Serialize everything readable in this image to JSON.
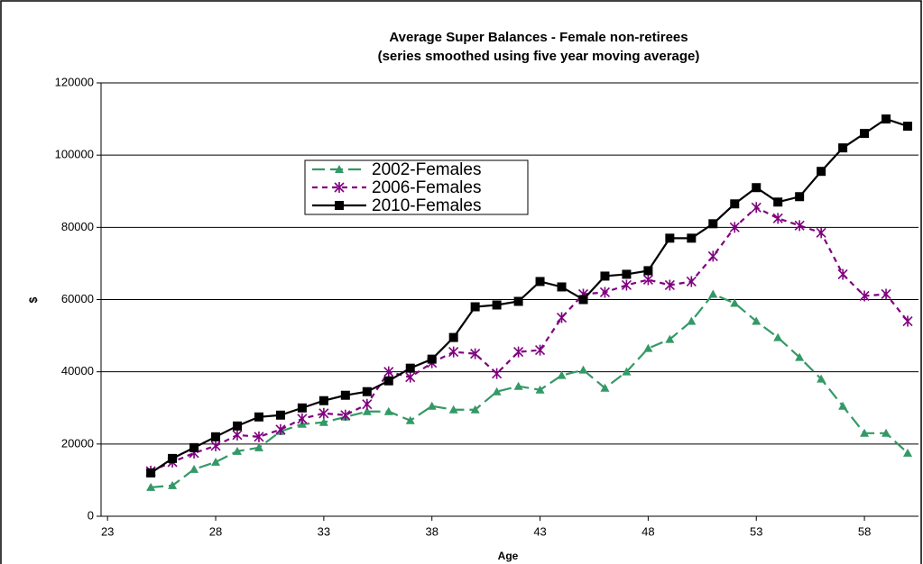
{
  "chart_data": {
    "type": "line",
    "title": "Average Super Balances - Female non-retirees",
    "subtitle": "(series smoothed using five year moving average)",
    "x_label": "Age",
    "y_label": "$",
    "x": [
      25,
      26,
      27,
      28,
      29,
      30,
      31,
      32,
      33,
      34,
      35,
      36,
      37,
      38,
      39,
      40,
      41,
      42,
      43,
      44,
      45,
      46,
      47,
      48,
      49,
      50,
      51,
      52,
      53,
      54,
      55,
      56,
      57,
      58,
      59,
      60
    ],
    "series": [
      {
        "name": "2002-Females",
        "color": "#339966",
        "marker": "triangle",
        "dash": "dashed",
        "values": [
          8000,
          8500,
          13000,
          15000,
          18000,
          19000,
          23500,
          25500,
          26000,
          27500,
          29000,
          29000,
          26500,
          30500,
          29500,
          29500,
          34500,
          36000,
          35000,
          39000,
          40500,
          35500,
          40000,
          46500,
          49000,
          54000,
          61500,
          59000,
          54000,
          49500,
          44000,
          38000,
          30500,
          23000,
          23000,
          17500
        ]
      },
      {
        "name": "2006-Females",
        "color": "#800080",
        "marker": "star",
        "dash": "dotted",
        "values": [
          12500,
          15000,
          17500,
          19500,
          22500,
          22000,
          24000,
          27000,
          28500,
          28000,
          31000,
          40000,
          38500,
          42500,
          45500,
          45000,
          39500,
          45500,
          46000,
          55000,
          61500,
          62000,
          64000,
          65500,
          64000,
          65000,
          72000,
          80000,
          85500,
          82500,
          80500,
          78500,
          67000,
          61000,
          61500,
          54000
        ]
      },
      {
        "name": "2010-Females",
        "color": "#000000",
        "marker": "square",
        "dash": "solid",
        "values": [
          12000,
          16000,
          19000,
          22000,
          25000,
          27500,
          28000,
          30000,
          32000,
          33500,
          34500,
          37500,
          41000,
          43500,
          49500,
          58000,
          58500,
          59500,
          65000,
          63500,
          60000,
          66500,
          67000,
          68000,
          77000,
          77000,
          81000,
          86500,
          91000,
          87000,
          88500,
          95500,
          102000,
          106000,
          110000,
          108000
        ]
      }
    ],
    "xlim": [
      22.7,
      60.5
    ],
    "xticks": [
      23,
      28,
      33,
      38,
      43,
      48,
      53,
      58
    ],
    "ylim": [
      0,
      120000
    ],
    "yticks": [
      0,
      20000,
      40000,
      60000,
      80000,
      100000,
      120000
    ],
    "grid": true
  }
}
